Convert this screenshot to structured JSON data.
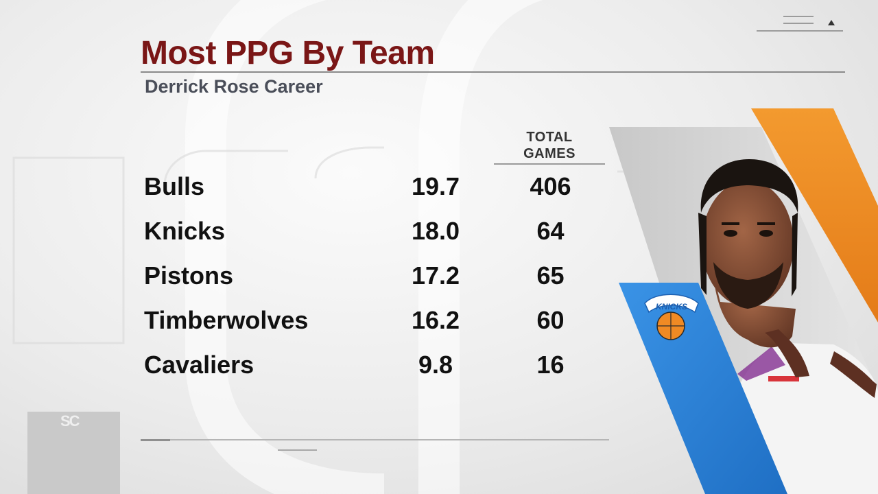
{
  "graphic": {
    "title": "Most PPG By Team",
    "subtitle": "Derrick Rose Career",
    "column_header": [
      "TOTAL",
      "GAMES"
    ],
    "rows": [
      {
        "team": "Bulls",
        "ppg": "19.7",
        "games": "406"
      },
      {
        "team": "Knicks",
        "ppg": "18.0",
        "games": "64"
      },
      {
        "team": "Pistons",
        "ppg": "17.2",
        "games": "65"
      },
      {
        "team": "Timberwolves",
        "ppg": "16.2",
        "games": "60"
      },
      {
        "team": "Cavaliers",
        "ppg": "9.8",
        "games": "16"
      }
    ]
  },
  "branding": {
    "network_logo": "SC",
    "team_logo_text": "KNICKS"
  },
  "colors": {
    "title": "#7a1616",
    "knicks_blue": "#2c7fd6",
    "knicks_orange": "#f08a24"
  },
  "icons": {
    "menu": "hamburger-icon",
    "caret": "caret-up-icon",
    "team_logo": "knicks-logo-icon",
    "player": "player-headshot-icon"
  }
}
